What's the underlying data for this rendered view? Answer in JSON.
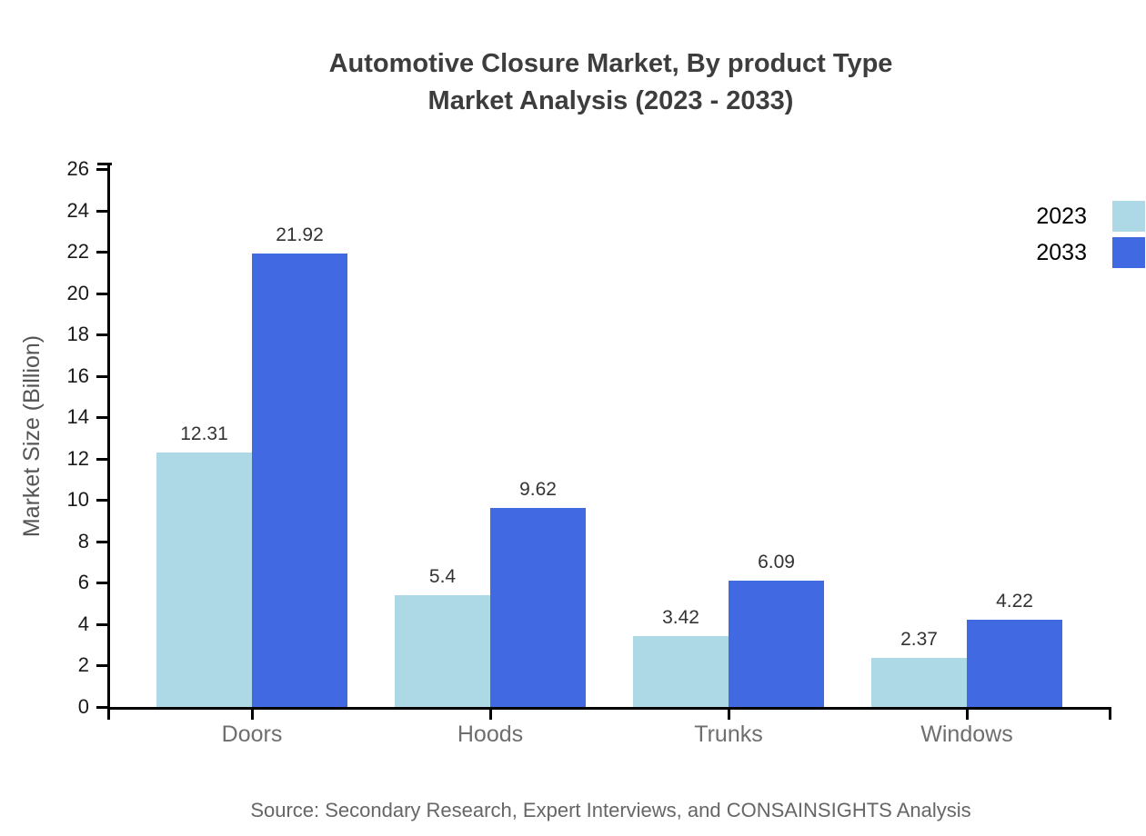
{
  "title": {
    "line1": "Automotive Closure Market, By product Type",
    "line2": "Market Analysis (2023 - 2033)"
  },
  "source": "Source: Secondary Research, Expert Interviews, and CONSAINSIGHTS Analysis",
  "colors": {
    "series_2023": "#ADD8E6",
    "series_2033": "#4169E1",
    "axis": "#000000",
    "title_text": "#3d3d3d",
    "category_text": "#6e6e6e",
    "value_label_text": "#333333",
    "source_text": "#666666",
    "background": "#ffffff"
  },
  "chart_data": {
    "type": "bar",
    "title": "Automotive Closure Market, By product Type Market Analysis (2023 - 2033)",
    "categories": [
      "Doors",
      "Hoods",
      "Trunks",
      "Windows"
    ],
    "series": [
      {
        "name": "2023",
        "color": "#ADD8E6",
        "values": [
          12.31,
          5.4,
          3.42,
          2.37
        ],
        "value_labels": [
          "12.31",
          "5.4",
          "3.42",
          "2.37"
        ]
      },
      {
        "name": "2033",
        "color": "#4169E1",
        "values": [
          21.92,
          9.62,
          6.09,
          4.22
        ],
        "value_labels": [
          "21.92",
          "9.62",
          "6.09",
          "4.22"
        ]
      }
    ],
    "xlabel": "",
    "ylabel": "Market Size (Billion)",
    "ylim": [
      0,
      26
    ],
    "ytick_step": 2,
    "ytick_labels": [
      "0",
      "2",
      "4",
      "6",
      "8",
      "10",
      "12",
      "14",
      "16",
      "18",
      "20",
      "22",
      "24",
      "26"
    ],
    "grid": false,
    "legend_position": "top-right",
    "legend_entries": [
      "2023",
      "2033"
    ]
  }
}
